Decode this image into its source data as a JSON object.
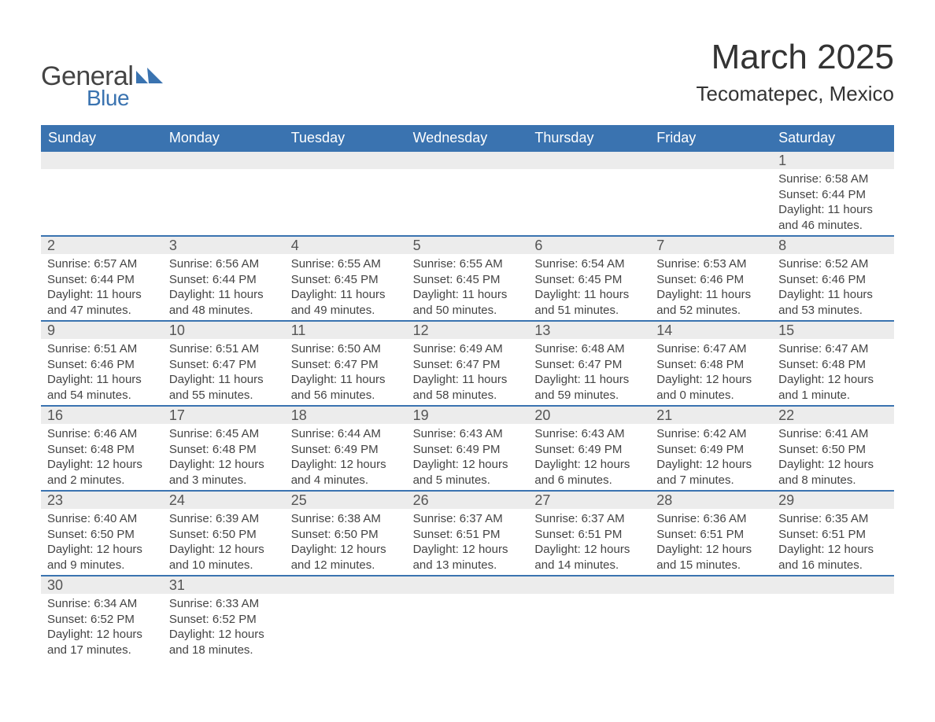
{
  "logo": {
    "general": "General",
    "blue": "Blue"
  },
  "title": "March 2025",
  "subtitle": "Tecomatepec, Mexico",
  "colors": {
    "header_bg": "#3a73b0",
    "header_text": "#ffffff",
    "num_bg": "#ececec",
    "text": "#444444",
    "separator": "#3a73b0",
    "page_bg": "#ffffff",
    "logo_blue": "#3a73b0"
  },
  "typography": {
    "title_fontsize": 44,
    "subtitle_fontsize": 26,
    "header_fontsize": 18,
    "daynum_fontsize": 18,
    "body_fontsize": 15,
    "body_lineheight": 19.5
  },
  "day_names": [
    "Sunday",
    "Monday",
    "Tuesday",
    "Wednesday",
    "Thursday",
    "Friday",
    "Saturday"
  ],
  "grid": {
    "columns": 7,
    "rows": 6,
    "start_weekday_index": 6
  },
  "days": [
    {
      "n": 1,
      "sunrise": "6:58 AM",
      "sunset": "6:44 PM",
      "dl": "11 hours and 46 minutes."
    },
    {
      "n": 2,
      "sunrise": "6:57 AM",
      "sunset": "6:44 PM",
      "dl": "11 hours and 47 minutes."
    },
    {
      "n": 3,
      "sunrise": "6:56 AM",
      "sunset": "6:44 PM",
      "dl": "11 hours and 48 minutes."
    },
    {
      "n": 4,
      "sunrise": "6:55 AM",
      "sunset": "6:45 PM",
      "dl": "11 hours and 49 minutes."
    },
    {
      "n": 5,
      "sunrise": "6:55 AM",
      "sunset": "6:45 PM",
      "dl": "11 hours and 50 minutes."
    },
    {
      "n": 6,
      "sunrise": "6:54 AM",
      "sunset": "6:45 PM",
      "dl": "11 hours and 51 minutes."
    },
    {
      "n": 7,
      "sunrise": "6:53 AM",
      "sunset": "6:46 PM",
      "dl": "11 hours and 52 minutes."
    },
    {
      "n": 8,
      "sunrise": "6:52 AM",
      "sunset": "6:46 PM",
      "dl": "11 hours and 53 minutes."
    },
    {
      "n": 9,
      "sunrise": "6:51 AM",
      "sunset": "6:46 PM",
      "dl": "11 hours and 54 minutes."
    },
    {
      "n": 10,
      "sunrise": "6:51 AM",
      "sunset": "6:47 PM",
      "dl": "11 hours and 55 minutes."
    },
    {
      "n": 11,
      "sunrise": "6:50 AM",
      "sunset": "6:47 PM",
      "dl": "11 hours and 56 minutes."
    },
    {
      "n": 12,
      "sunrise": "6:49 AM",
      "sunset": "6:47 PM",
      "dl": "11 hours and 58 minutes."
    },
    {
      "n": 13,
      "sunrise": "6:48 AM",
      "sunset": "6:47 PM",
      "dl": "11 hours and 59 minutes."
    },
    {
      "n": 14,
      "sunrise": "6:47 AM",
      "sunset": "6:48 PM",
      "dl": "12 hours and 0 minutes."
    },
    {
      "n": 15,
      "sunrise": "6:47 AM",
      "sunset": "6:48 PM",
      "dl": "12 hours and 1 minute."
    },
    {
      "n": 16,
      "sunrise": "6:46 AM",
      "sunset": "6:48 PM",
      "dl": "12 hours and 2 minutes."
    },
    {
      "n": 17,
      "sunrise": "6:45 AM",
      "sunset": "6:48 PM",
      "dl": "12 hours and 3 minutes."
    },
    {
      "n": 18,
      "sunrise": "6:44 AM",
      "sunset": "6:49 PM",
      "dl": "12 hours and 4 minutes."
    },
    {
      "n": 19,
      "sunrise": "6:43 AM",
      "sunset": "6:49 PM",
      "dl": "12 hours and 5 minutes."
    },
    {
      "n": 20,
      "sunrise": "6:43 AM",
      "sunset": "6:49 PM",
      "dl": "12 hours and 6 minutes."
    },
    {
      "n": 21,
      "sunrise": "6:42 AM",
      "sunset": "6:49 PM",
      "dl": "12 hours and 7 minutes."
    },
    {
      "n": 22,
      "sunrise": "6:41 AM",
      "sunset": "6:50 PM",
      "dl": "12 hours and 8 minutes."
    },
    {
      "n": 23,
      "sunrise": "6:40 AM",
      "sunset": "6:50 PM",
      "dl": "12 hours and 9 minutes."
    },
    {
      "n": 24,
      "sunrise": "6:39 AM",
      "sunset": "6:50 PM",
      "dl": "12 hours and 10 minutes."
    },
    {
      "n": 25,
      "sunrise": "6:38 AM",
      "sunset": "6:50 PM",
      "dl": "12 hours and 12 minutes."
    },
    {
      "n": 26,
      "sunrise": "6:37 AM",
      "sunset": "6:51 PM",
      "dl": "12 hours and 13 minutes."
    },
    {
      "n": 27,
      "sunrise": "6:37 AM",
      "sunset": "6:51 PM",
      "dl": "12 hours and 14 minutes."
    },
    {
      "n": 28,
      "sunrise": "6:36 AM",
      "sunset": "6:51 PM",
      "dl": "12 hours and 15 minutes."
    },
    {
      "n": 29,
      "sunrise": "6:35 AM",
      "sunset": "6:51 PM",
      "dl": "12 hours and 16 minutes."
    },
    {
      "n": 30,
      "sunrise": "6:34 AM",
      "sunset": "6:52 PM",
      "dl": "12 hours and 17 minutes."
    },
    {
      "n": 31,
      "sunrise": "6:33 AM",
      "sunset": "6:52 PM",
      "dl": "12 hours and 18 minutes."
    }
  ],
  "labels": {
    "sunrise": "Sunrise:",
    "sunset": "Sunset:",
    "daylight": "Daylight:"
  }
}
